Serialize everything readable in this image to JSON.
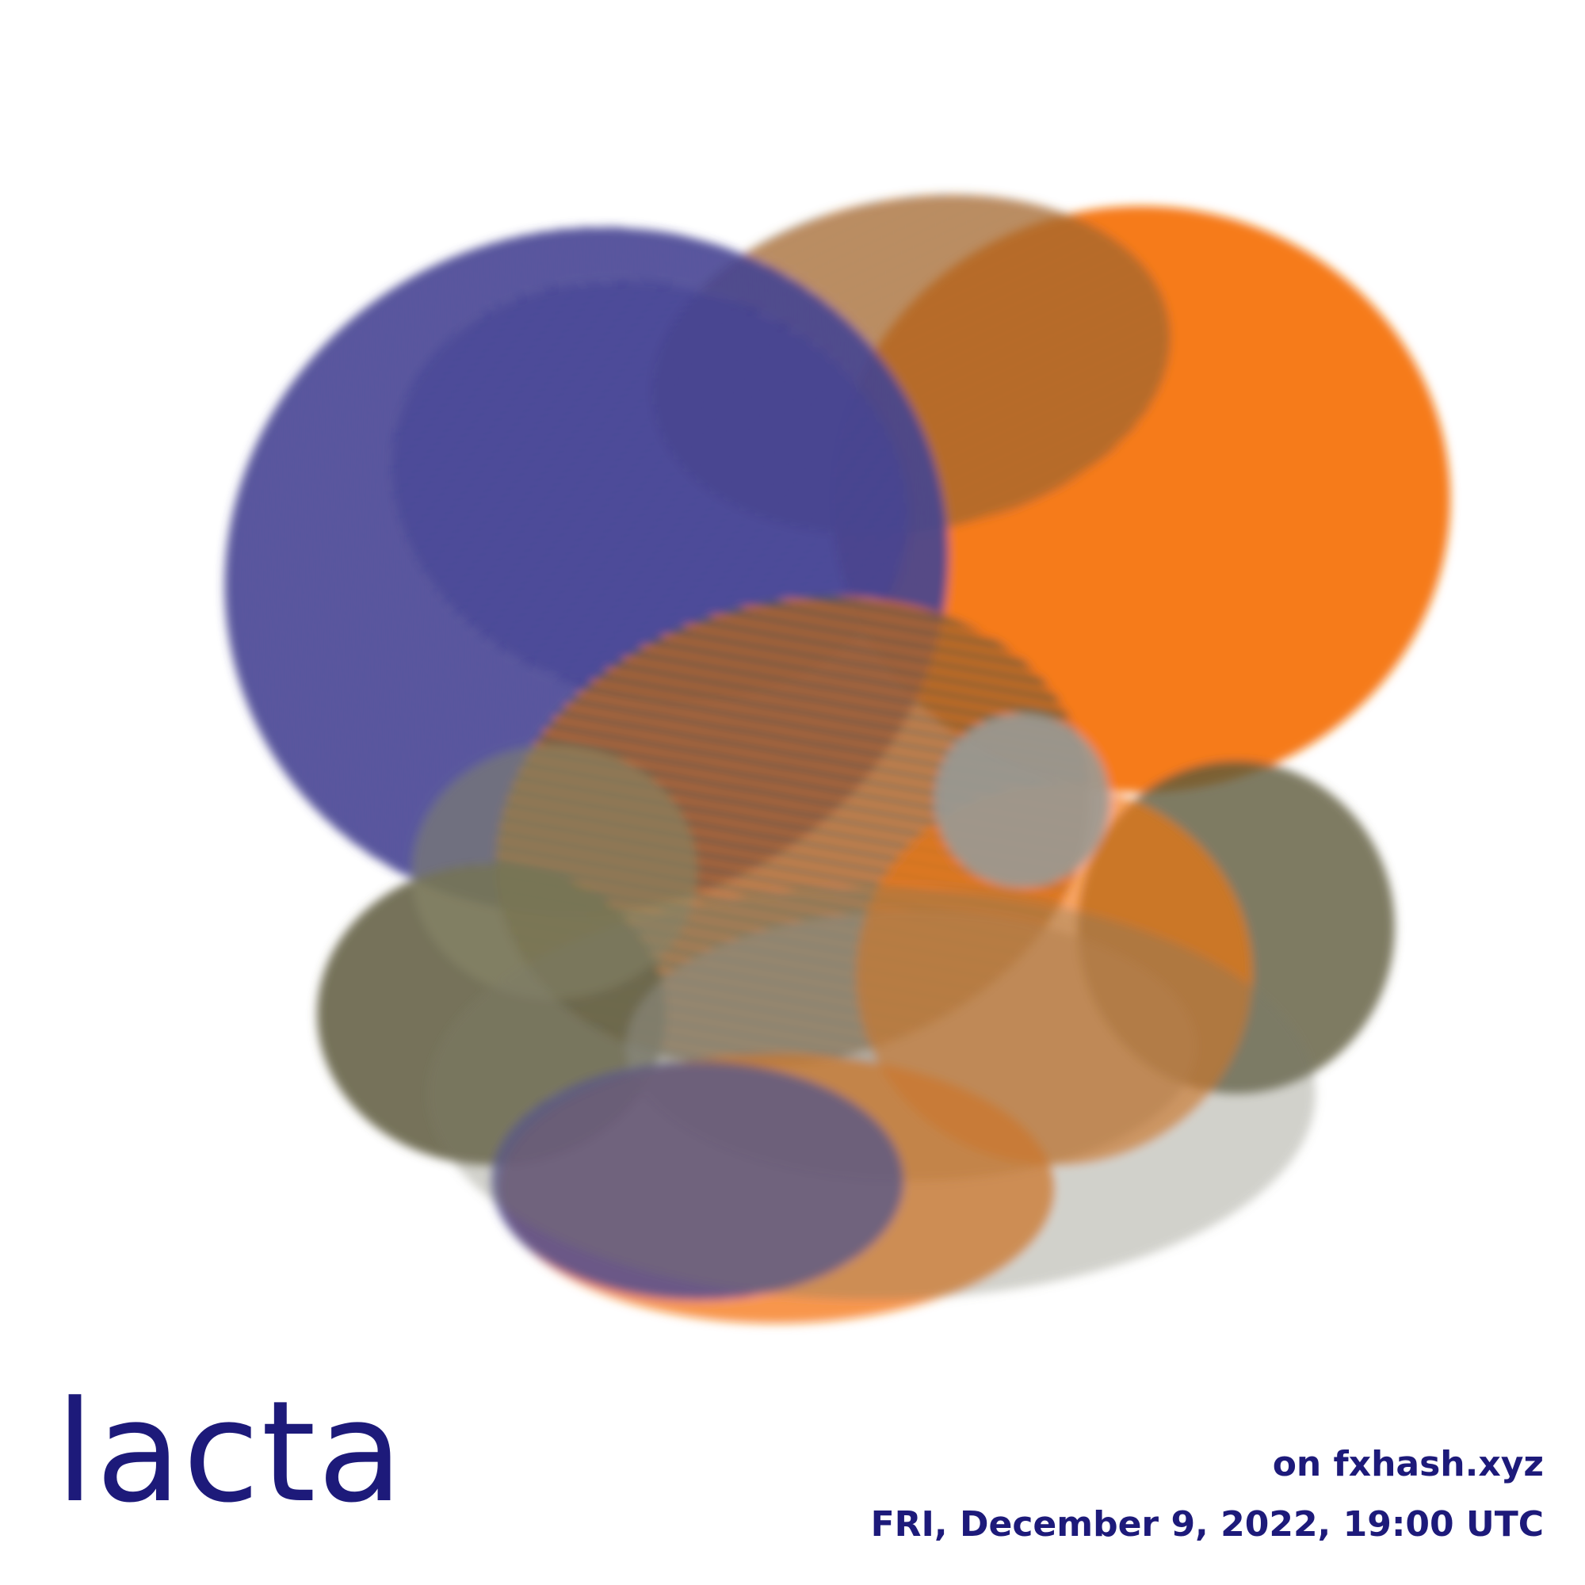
{
  "title": "lacta",
  "platform": "on fxhash.xyz",
  "date": "FRI, December 9, 2022, 19:00 UTC",
  "colors": {
    "text": "#1d1a7a",
    "navy": "#2b2a86",
    "orange": "#f5740c",
    "olive": "#5e5b3c",
    "gray": "#9a9a96",
    "background": "#ffffff"
  },
  "artwork_icon": "generative-circles-artwork"
}
